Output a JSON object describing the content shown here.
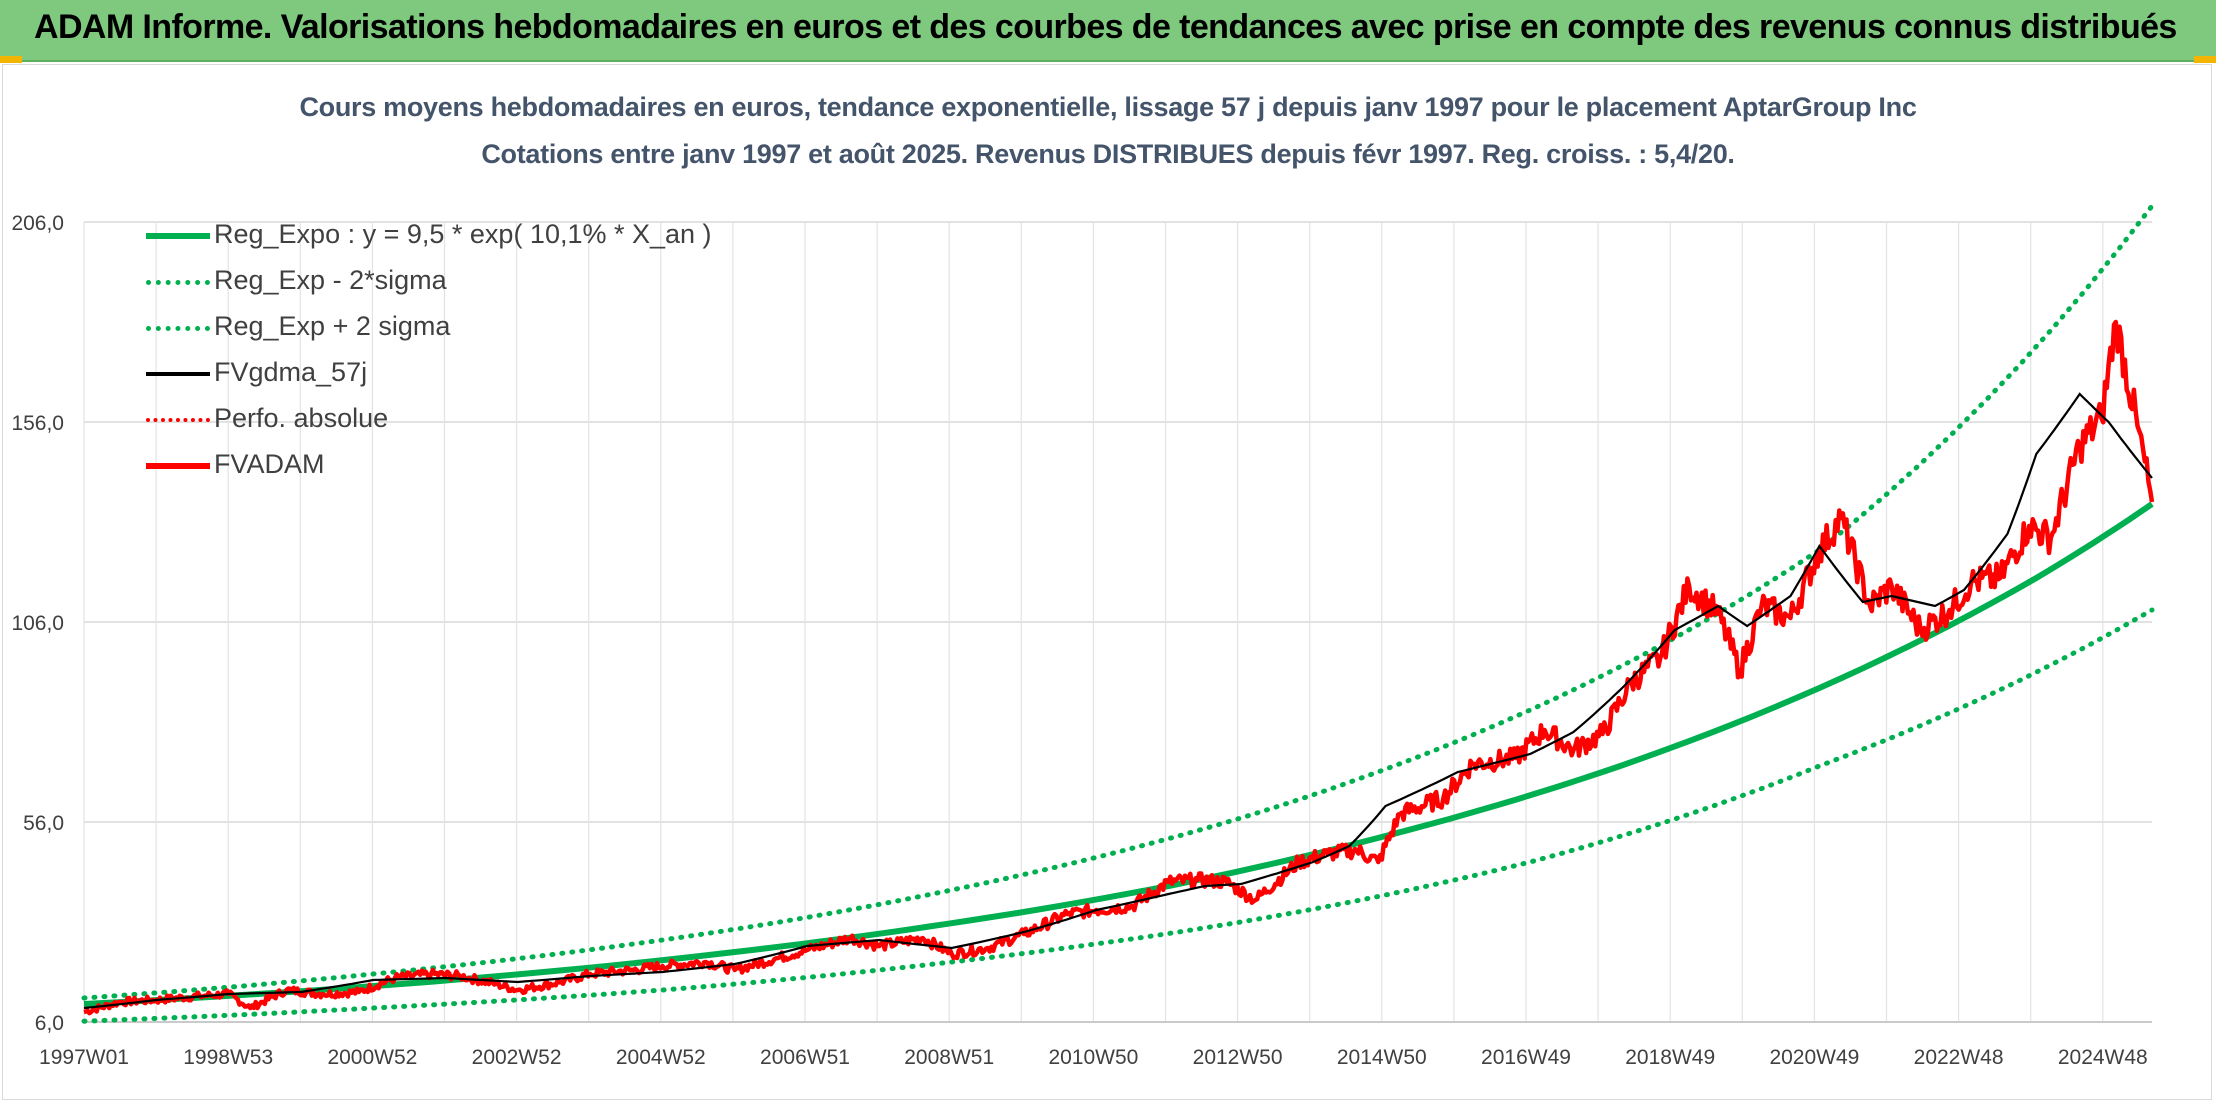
{
  "header": {
    "title": "ADAM Informe. Valorisations hebdomadaires en euros et des courbes de tendances avec prise en compte des revenus connus distribués"
  },
  "colors": {
    "header_bg": "#7fc97f",
    "trend": "#00b050",
    "fv": "#000000",
    "perfo": "#ff0000",
    "fvadam": "#ff0000"
  },
  "chart_data": {
    "type": "line",
    "title": "Cours moyens hebdomadaires en euros, tendance exponentielle, lissage 57 j depuis janv 1997 pour le placement AptarGroup Inc",
    "subtitle": "Cotations entre janv 1997 et août 2025. Revenus DISTRIBUES depuis févr 1997. Reg. croiss. : 5,4/20.",
    "xlabel": "",
    "ylabel": "",
    "x_range": [
      "1997W01",
      "2025W35"
    ],
    "ylim": [
      6,
      206
    ],
    "y_ticks": [
      "6,0",
      "56,0",
      "106,0",
      "156,0",
      "206,0"
    ],
    "x_ticks": [
      "1997W01",
      "1998W53",
      "2000W52",
      "2002W52",
      "2004W52",
      "2006W51",
      "2008W51",
      "2010W50",
      "2012W50",
      "2014W50",
      "2016W49",
      "2018W49",
      "2020W49",
      "2022W48",
      "2024W48"
    ],
    "grid": true,
    "legend_position": "top-left",
    "series": [
      {
        "name": "Reg_Expo : y = 9,5 * exp( 10,1% *  X_an )",
        "color": "#00b050",
        "style": "solid",
        "x": [
          1997.0,
          2000.0,
          2003.0,
          2006.0,
          2009.0,
          2012.0,
          2015.0,
          2018.0,
          2021.0,
          2024.0,
          2025.6
        ],
        "values": [
          10.5,
          13.7,
          17.9,
          23.5,
          30.7,
          40.0,
          52.5,
          68.5,
          89.5,
          117.0,
          135.5
        ]
      },
      {
        "name": "Reg_Exp - 2*sigma",
        "color": "#00b050",
        "style": "dotted",
        "x": [
          1997.0,
          2001.0,
          2005.0,
          2009.0,
          2013.0,
          2017.0,
          2021.0,
          2025.6
        ],
        "values": [
          6.2,
          9.5,
          14.0,
          21.0,
          31.0,
          46.0,
          70.0,
          109.0
        ]
      },
      {
        "name": "Reg_Exp + 2 sigma",
        "color": "#00b050",
        "style": "dotted",
        "x": [
          1997.0,
          2001.0,
          2005.0,
          2009.0,
          2013.0,
          2017.0,
          2021.0,
          2025.6
        ],
        "values": [
          12.0,
          18.0,
          26.5,
          39.0,
          57.0,
          84.0,
          124.0,
          210.0
        ]
      },
      {
        "name": "FVgdma_57j",
        "color": "#000000",
        "style": "solid",
        "x": [
          1997.0,
          1998.0,
          1999.0,
          2000.0,
          2001.0,
          2002.0,
          2003.0,
          2004.0,
          2005.0,
          2006.0,
          2007.0,
          2008.0,
          2009.0,
          2010.0,
          2011.0,
          2012.0,
          2012.5,
          2013.0,
          2014.0,
          2014.5,
          2015.0,
          2016.0,
          2017.0,
          2017.6,
          2018.3,
          2019.0,
          2019.6,
          2020.0,
          2020.6,
          2021.0,
          2021.6,
          2022.0,
          2022.6,
          2023.0,
          2023.6,
          2024.0,
          2024.6,
          2025.0,
          2025.6
        ],
        "values": [
          9.5,
          11.5,
          13.0,
          13.5,
          16.5,
          17.0,
          16.0,
          17.5,
          18.5,
          20.5,
          25.0,
          26.5,
          24.5,
          28.5,
          34.0,
          38.0,
          40.0,
          40.5,
          46.0,
          50.0,
          60.0,
          68.5,
          73.0,
          78.5,
          90.0,
          104.0,
          110.0,
          105.0,
          112.5,
          125.0,
          111.0,
          112.5,
          110.0,
          114.0,
          128.0,
          148.0,
          163.0,
          156.0,
          142.0
        ]
      },
      {
        "name": "Perfo. absolue",
        "color": "#ff0000",
        "style": "dotted",
        "x": [],
        "values": []
      },
      {
        "name": "FVADAM",
        "color": "#ff0000",
        "style": "solid",
        "x": [
          1997.0,
          1997.5,
          1998.0,
          1998.6,
          1999.0,
          1999.3,
          1999.8,
          2000.3,
          2000.8,
          2001.3,
          2001.8,
          2002.2,
          2002.7,
          2003.0,
          2003.6,
          2004.0,
          2004.6,
          2005.0,
          2005.6,
          2006.0,
          2006.6,
          2007.0,
          2007.6,
          2008.0,
          2008.6,
          2009.0,
          2009.5,
          2010.0,
          2010.6,
          2011.0,
          2011.5,
          2012.0,
          2012.4,
          2012.8,
          2013.2,
          2013.8,
          2014.2,
          2014.6,
          2014.9,
          2015.2,
          2015.8,
          2016.2,
          2016.8,
          2017.2,
          2017.6,
          2018.0,
          2018.4,
          2018.8,
          2019.2,
          2019.6,
          2019.9,
          2020.2,
          2020.6,
          2021.0,
          2021.3,
          2021.7,
          2022.0,
          2022.4,
          2022.8,
          2023.1,
          2023.5,
          2023.9,
          2024.2,
          2024.6,
          2024.9,
          2025.1,
          2025.4,
          2025.6
        ],
        "values": [
          8.5,
          11.0,
          11.5,
          12.5,
          13.0,
          9.5,
          14.0,
          13.0,
          13.5,
          17.0,
          18.0,
          17.5,
          15.5,
          14.0,
          16.0,
          18.0,
          19.0,
          20.0,
          21.0,
          19.0,
          22.0,
          24.0,
          27.0,
          25.0,
          27.0,
          23.0,
          24.5,
          28.0,
          33.0,
          34.0,
          35.0,
          41.0,
          41.5,
          41.0,
          36.5,
          46.0,
          48.0,
          49.0,
          46.0,
          58.0,
          62.0,
          70.5,
          72.0,
          79.0,
          74.0,
          78.0,
          91.0,
          97.0,
          115.0,
          108.0,
          94.0,
          110.0,
          107.0,
          124.0,
          132.0,
          110.0,
          115.0,
          104.0,
          109.0,
          116.0,
          117.0,
          130.0,
          127.0,
          150.0,
          157.0,
          181.0,
          155.0,
          136.0
        ]
      }
    ]
  }
}
